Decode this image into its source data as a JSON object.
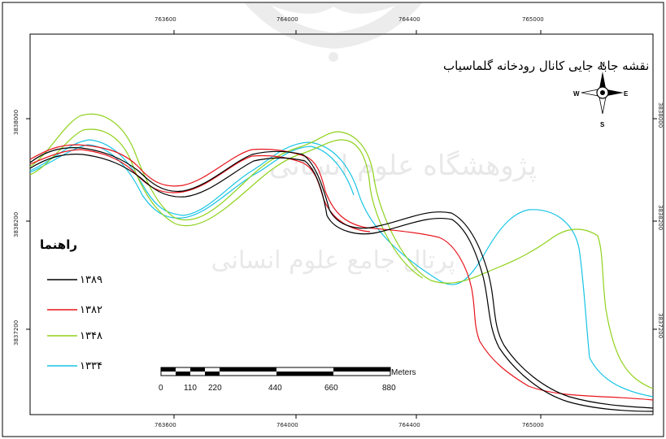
{
  "map": {
    "title": "نقشه جابه جایی کانال رودخانه گلماسیاب",
    "legend_title": "راهنما",
    "north_arrow": {
      "icon": "north-arrow-icon",
      "n": "N",
      "s": "S",
      "e": "E",
      "w": "W"
    },
    "scale_bar": {
      "labels": [
        "0",
        "110",
        "220",
        "440",
        "660",
        "880"
      ],
      "unit": "Meters"
    },
    "top_ticks": [
      "763600",
      "764000",
      "764400",
      "765000"
    ],
    "bottom_ticks": [
      "763600",
      "764000",
      "764400",
      "765000"
    ],
    "left_ticks": [
      "3838000",
      "3838200",
      "3837200"
    ],
    "right_ticks": [
      "3838000",
      "3838200",
      "3837200"
    ],
    "series": [
      {
        "name": "۱۳۸۹",
        "color": "#000000"
      },
      {
        "name": "۱۳۸۲",
        "color": "#e8141c"
      },
      {
        "name": "۱۳۴۸",
        "color": "#8fd21c"
      },
      {
        "name": "۱۳۳۴",
        "color": "#17c4e6"
      }
    ],
    "watermark_icon": "institute-emblem-watermark-icon"
  }
}
